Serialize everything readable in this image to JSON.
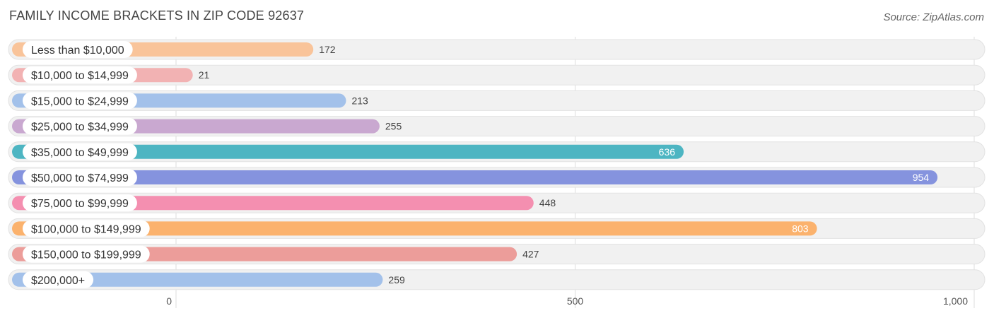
{
  "header": {
    "title": "FAMILY INCOME BRACKETS IN ZIP CODE 92637",
    "source": "Source: ZipAtlas.com"
  },
  "chart_data": {
    "type": "bar",
    "orientation": "horizontal",
    "title": "FAMILY INCOME BRACKETS IN ZIP CODE 92637",
    "xlabel": "",
    "ylabel": "",
    "xlim": [
      0,
      1000
    ],
    "ticks": [
      {
        "value": 0,
        "label": "0"
      },
      {
        "value": 500,
        "label": "500"
      },
      {
        "value": 1000,
        "label": "1,000"
      }
    ],
    "grid": true,
    "categories": [
      "Less than $10,000",
      "$10,000 to $14,999",
      "$15,000 to $24,999",
      "$25,000 to $34,999",
      "$35,000 to $49,999",
      "$50,000 to $74,999",
      "$75,000 to $99,999",
      "$100,000 to $149,999",
      "$150,000 to $199,999",
      "$200,000+"
    ],
    "values": [
      172,
      21,
      213,
      255,
      636,
      954,
      448,
      803,
      427,
      259
    ],
    "value_labels": [
      "172",
      "21",
      "213",
      "255",
      "636",
      "954",
      "448",
      "803",
      "427",
      "259"
    ],
    "colors": [
      "#f9c49a",
      "#f2b2b3",
      "#a3c1ea",
      "#c9a8d0",
      "#4db5c2",
      "#8593de",
      "#f48fb0",
      "#fbb26d",
      "#ec9d9a",
      "#a3c1ea"
    ]
  }
}
